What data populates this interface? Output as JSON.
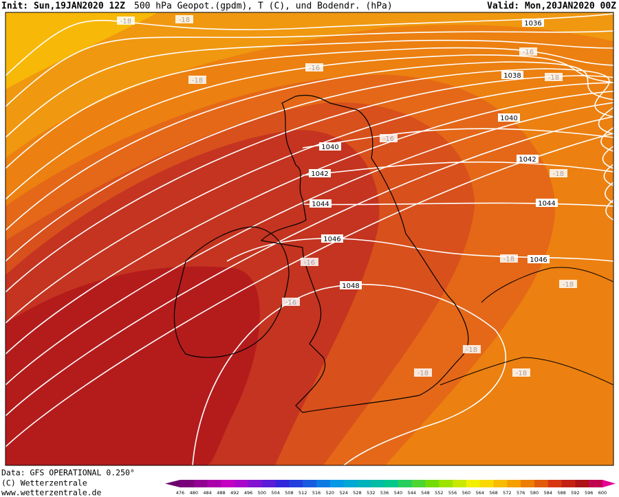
{
  "header": {
    "init": "Init: Sun,19JAN2020 12Z",
    "title": "500 hPa Geopot.(gpdm), T (C), und Bodendr. (hPa)",
    "valid": "Valid: Mon,20JAN2020 00Z"
  },
  "isobar_labels": [
    "1036",
    "1038",
    "1040",
    "1040",
    "1042",
    "1042",
    "1044",
    "1044",
    "1046",
    "1046",
    "1048"
  ],
  "temperature_labels": [
    "-18",
    "-18",
    "-18",
    "-16",
    "-16",
    "-18",
    "-16",
    "-18",
    "-16",
    "-18",
    "-18",
    "-16",
    "-18",
    "-18",
    "-18"
  ],
  "footer": {
    "data": "Data: GFS OPERATIONAL 0.250°",
    "copyright": "(C) Wetterzentrale",
    "url": "www.wetterzentrale.de"
  },
  "legend": {
    "labels": [
      476,
      480,
      484,
      488,
      492,
      496,
      500,
      504,
      508,
      512,
      516,
      520,
      524,
      528,
      532,
      536,
      540,
      544,
      548,
      552,
      556,
      560,
      564,
      568,
      572,
      576,
      580,
      584,
      588,
      592,
      596,
      600
    ]
  }
}
